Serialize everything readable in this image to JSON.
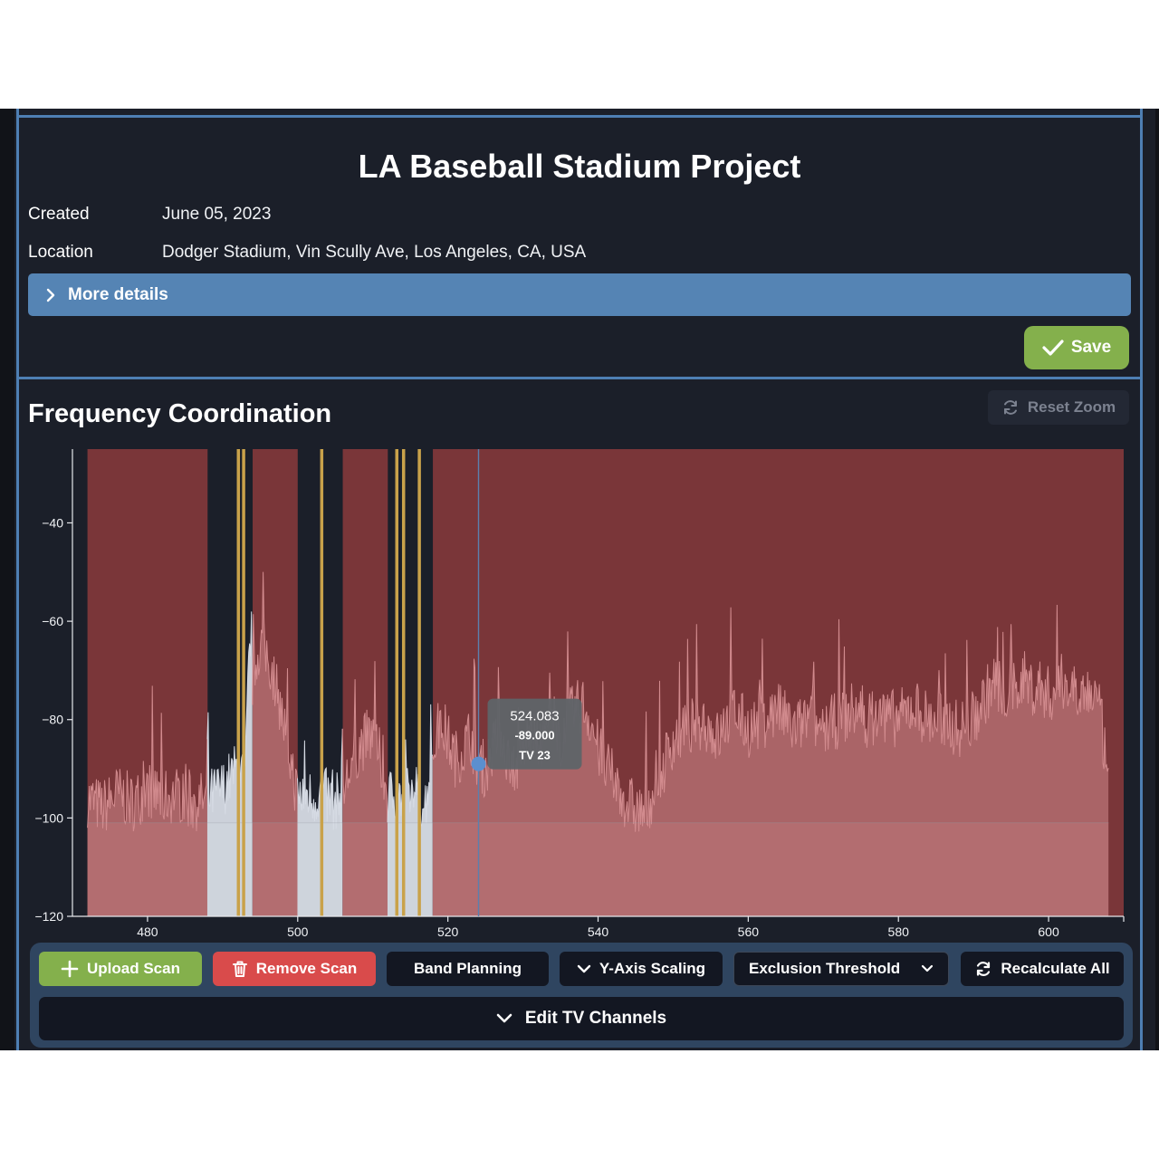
{
  "project": {
    "title": "LA Baseball Stadium Project",
    "created_label": "Created",
    "created_value": "June 05, 2023",
    "location_label": "Location",
    "location_value": "Dodger Stadium, Vin Scully Ave, Los Angeles, CA, USA",
    "more_details_label": "More details",
    "save_label": "Save"
  },
  "frequency": {
    "title": "Frequency Coordination",
    "reset_zoom_label": "Reset Zoom"
  },
  "chart_data": {
    "type": "area",
    "xlim": [
      470,
      610
    ],
    "ylim": [
      -120,
      -25
    ],
    "x_ticks": [
      480,
      500,
      520,
      540,
      560,
      580,
      600
    ],
    "y_ticks": [
      -40,
      -60,
      -80,
      -100,
      -120
    ],
    "grid": false,
    "scan_start": 472,
    "scan_end": 608,
    "exclusion_threshold": -101,
    "excluded_ranges": [
      [
        472,
        488
      ],
      [
        494,
        500
      ],
      [
        506,
        512
      ],
      [
        518,
        610
      ]
    ],
    "open_ranges": [
      [
        488,
        494
      ],
      [
        500,
        506
      ],
      [
        512,
        518
      ]
    ],
    "frequency_markers": [
      492.1,
      492.8,
      503.2,
      513.2,
      514.1,
      516.2
    ],
    "spectrum": {
      "x": [
        472,
        474,
        476,
        478,
        480,
        482,
        484,
        486,
        488,
        489,
        490,
        491,
        492,
        493,
        493.5,
        494,
        495,
        496,
        497,
        498,
        499,
        500,
        501,
        502,
        503,
        504,
        505,
        506,
        507,
        508,
        509,
        510,
        511,
        512,
        513,
        514,
        515,
        516,
        517,
        518,
        519,
        520,
        521,
        522,
        523,
        524,
        525,
        526,
        527,
        528,
        529,
        530,
        531,
        532,
        533,
        534,
        535,
        536,
        537,
        538,
        539,
        540,
        541,
        542,
        543,
        544,
        545,
        546,
        547,
        548,
        549,
        550,
        552,
        554,
        556,
        558,
        560,
        562,
        564,
        566,
        568,
        570,
        572,
        574,
        576,
        578,
        580,
        582,
        584,
        586,
        588,
        590,
        592,
        593,
        594,
        595,
        596,
        597,
        598,
        599,
        600,
        601,
        602,
        603,
        604,
        605,
        606,
        607,
        608
      ],
      "y": [
        -96,
        -98,
        -95,
        -97,
        -94,
        -96,
        -95,
        -97,
        -96,
        -95,
        -94,
        -92,
        -90,
        -93,
        -68,
        -72,
        -64,
        -67,
        -72,
        -80,
        -88,
        -96,
        -95,
        -96,
        -95,
        -96,
        -97,
        -95,
        -90,
        -86,
        -84,
        -83,
        -88,
        -96,
        -95,
        -96,
        -95,
        -96,
        -97,
        -86,
        -80,
        -84,
        -88,
        -86,
        -83,
        -89,
        -90,
        -86,
        -82,
        -88,
        -90,
        -86,
        -83,
        -86,
        -82,
        -80,
        -84,
        -80,
        -78,
        -77,
        -80,
        -86,
        -90,
        -92,
        -95,
        -97,
        -98,
        -99,
        -96,
        -94,
        -88,
        -84,
        -82,
        -80,
        -84,
        -78,
        -82,
        -80,
        -78,
        -82,
        -80,
        -82,
        -80,
        -78,
        -80,
        -79,
        -80,
        -77,
        -80,
        -80,
        -82,
        -80,
        -74,
        -72,
        -75,
        -74,
        -73,
        -72,
        -74,
        -73,
        -75,
        -74,
        -72,
        -74,
        -73,
        -75,
        -74,
        -80,
        -95
      ]
    },
    "tooltip": {
      "x": 524.083,
      "y": -89.0,
      "frequency_text": "524.083",
      "level_text": "-89.000",
      "channel_text": "TV 23"
    }
  },
  "toolbar": {
    "upload_scan_label": "Upload Scan",
    "remove_scan_label": "Remove Scan",
    "band_planning_label": "Band Planning",
    "y_axis_scaling_label": "Y-Axis Scaling",
    "exclusion_threshold_label": "Exclusion Threshold",
    "recalculate_all_label": "Recalculate All",
    "edit_tv_channels_label": "Edit TV Channels"
  },
  "colors": {
    "accent_blue": "#5584b4",
    "save_green": "#84b04c",
    "remove_red": "#d94b4b",
    "excluded_region": "#7a3639",
    "spectrum_excluded": "#d28b8e",
    "spectrum_open": "#d6dbe4",
    "marker": "#c9a24a"
  },
  "icons": {
    "more_details": "chevron-right-icon",
    "save": "check-icon",
    "reset_zoom": "refresh-icon",
    "upload": "plus-icon",
    "remove": "trash-icon",
    "y_axis": "chevron-down-icon",
    "exclusion": "chevron-down-icon",
    "recalculate": "refresh-icon",
    "edit_tv": "chevron-down-icon"
  }
}
